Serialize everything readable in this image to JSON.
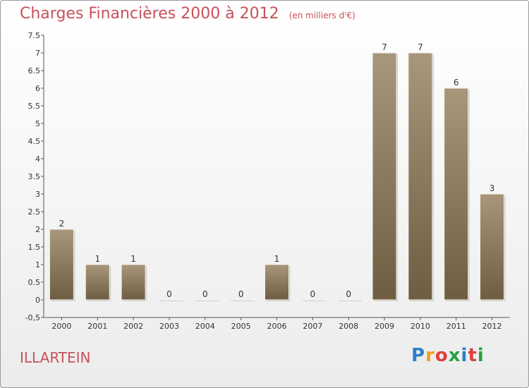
{
  "header": {
    "title": "Charges Financières 2000 à 2012",
    "subtitle": "(en milliers d'€)"
  },
  "footer": {
    "commune": "ILLARTEIN",
    "logo_letters": [
      "P",
      "r",
      "o",
      "x",
      "i",
      "t",
      "i"
    ],
    "logo_colors": [
      "#2e7ec8",
      "#f0a020",
      "#e04040",
      "#2aa040",
      "#2e7ec8",
      "#e04040",
      "#2aa040"
    ]
  },
  "colors": {
    "bar_top": "#a8977a",
    "bar_bottom": "#6e5d40",
    "title": "#c8505a"
  },
  "chart_data": {
    "type": "bar",
    "categories": [
      "2000",
      "2001",
      "2002",
      "2003",
      "2004",
      "2005",
      "2006",
      "2007",
      "2008",
      "2009",
      "2010",
      "2011",
      "2012"
    ],
    "values": [
      2,
      1,
      1,
      0,
      0,
      0,
      1,
      0,
      0,
      7,
      7,
      6,
      3
    ],
    "ylim": [
      -0.5,
      7.5
    ],
    "yticks": [
      "-0,5",
      "0",
      "0.5",
      "1",
      "1.5",
      "2",
      "2.5",
      "3",
      "3.5",
      "4",
      "4.5",
      "5",
      "5.5",
      "6",
      "6.5",
      "7",
      "7.5"
    ],
    "ytick_values": [
      -0.5,
      0,
      0.5,
      1,
      1.5,
      2,
      2.5,
      3,
      3.5,
      4,
      4.5,
      5,
      5.5,
      6,
      6.5,
      7,
      7.5
    ],
    "grid": false
  }
}
